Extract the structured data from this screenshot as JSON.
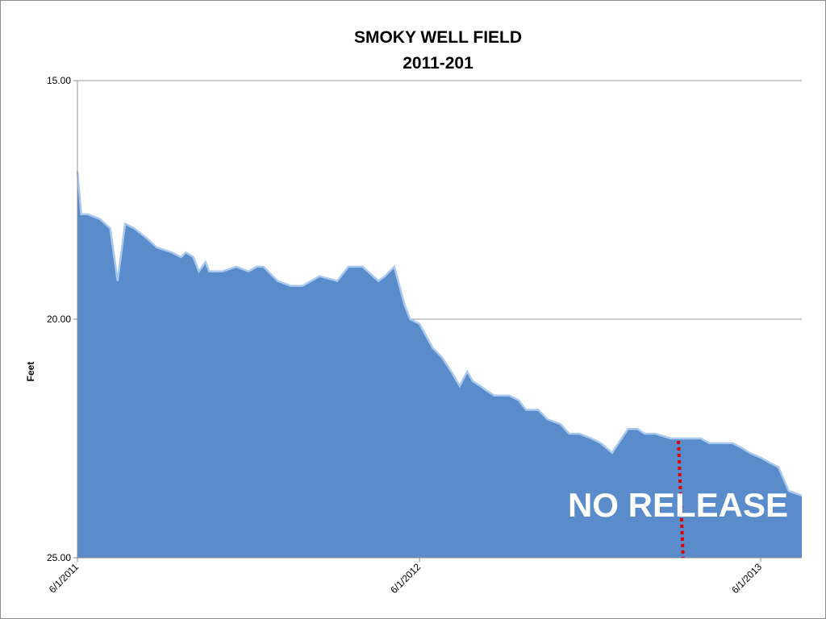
{
  "chart_data": {
    "type": "area",
    "title": "SMOKY WELL FIELD",
    "subtitle": "2011-201",
    "xlabel": "",
    "ylabel": "Feet",
    "y_inverted": true,
    "ylim": [
      15.0,
      25.0
    ],
    "yticks": [
      "15.00",
      "20.00",
      "25.00"
    ],
    "xlim": [
      "2011-06-01",
      "2013-07-15"
    ],
    "xticks": [
      {
        "date": "2011-06-01",
        "label": "6/1/2011"
      },
      {
        "date": "2012-06-01",
        "label": "6/1/2012"
      },
      {
        "date": "2013-06-01",
        "label": "6/1/2013"
      }
    ],
    "grid": "horizontal",
    "fill_color": "#5a8ccc",
    "edge_color": "#a9c8ee",
    "series": [
      {
        "x": [
          "2011-06-01",
          "2011-06-05",
          "2011-06-12",
          "2011-06-25",
          "2011-07-06",
          "2011-07-14",
          "2011-07-22",
          "2011-08-01",
          "2011-08-14",
          "2011-08-25",
          "2011-09-10",
          "2011-09-20",
          "2011-09-25",
          "2011-10-03",
          "2011-10-09",
          "2011-10-16",
          "2011-10-20",
          "2011-11-03",
          "2011-11-18",
          "2011-12-01",
          "2011-12-10",
          "2011-12-17",
          "2012-01-01",
          "2012-01-15",
          "2012-01-28",
          "2012-02-15",
          "2012-03-05",
          "2012-03-17",
          "2012-04-01",
          "2012-04-18",
          "2012-04-25",
          "2012-05-05",
          "2012-05-16",
          "2012-05-22",
          "2012-06-01",
          "2012-06-15",
          "2012-06-25",
          "2012-07-05",
          "2012-07-14",
          "2012-07-22",
          "2012-07-28",
          "2012-08-05",
          "2012-08-12",
          "2012-08-20",
          "2012-09-05",
          "2012-09-15",
          "2012-09-23",
          "2012-10-06",
          "2012-10-16",
          "2012-10-30",
          "2012-11-08",
          "2012-11-19",
          "2012-12-02",
          "2012-12-12",
          "2012-12-24",
          "2013-01-10",
          "2013-01-20",
          "2013-01-28",
          "2013-02-08",
          "2013-02-25",
          "2013-03-04",
          "2013-03-13",
          "2013-03-29",
          "2013-04-07",
          "2013-04-18",
          "2013-05-02",
          "2013-05-12",
          "2013-05-20",
          "2013-06-01",
          "2013-06-10",
          "2013-06-20",
          "2013-07-01",
          "2013-07-15"
        ],
        "values": [
          16.9,
          17.8,
          17.8,
          17.9,
          18.1,
          19.2,
          18.0,
          18.1,
          18.3,
          18.5,
          18.6,
          18.7,
          18.6,
          18.7,
          19.0,
          18.8,
          19.0,
          19.0,
          18.9,
          19.0,
          18.9,
          18.9,
          19.2,
          19.3,
          19.3,
          19.1,
          19.2,
          18.9,
          18.9,
          19.2,
          19.1,
          18.9,
          19.7,
          20.0,
          20.1,
          20.6,
          20.8,
          21.1,
          21.4,
          21.1,
          21.3,
          21.4,
          21.5,
          21.6,
          21.6,
          21.7,
          21.9,
          21.9,
          22.1,
          22.2,
          22.4,
          22.4,
          22.5,
          22.6,
          22.8,
          22.3,
          22.3,
          22.4,
          22.4,
          22.5,
          22.5,
          22.5,
          22.5,
          22.6,
          22.6,
          22.6,
          22.7,
          22.8,
          22.9,
          23.0,
          23.1,
          23.6,
          23.7
        ]
      }
    ],
    "annotations": [
      {
        "text": "NO RELEASE",
        "color": "#ffffff"
      },
      {
        "type": "vertical-dotted-line",
        "color": "#e00000",
        "from_date": "2013-03-05",
        "to_date": "2013-03-10",
        "from_value": 22.55,
        "to_value": 25.0
      }
    ]
  }
}
